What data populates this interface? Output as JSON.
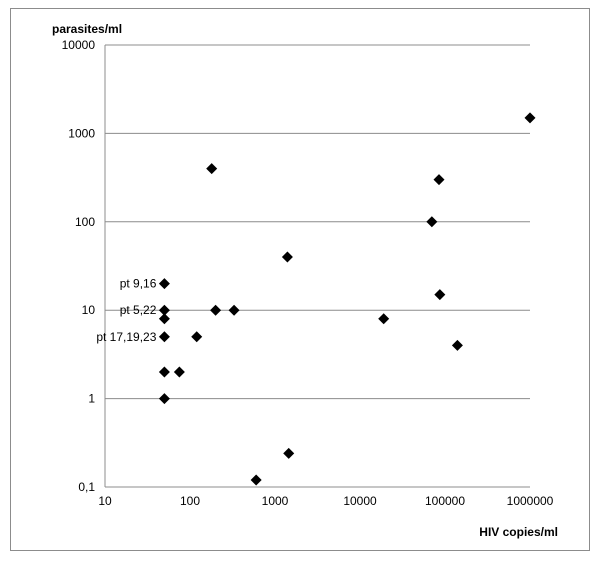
{
  "chart_data": {
    "type": "scatter",
    "title": "",
    "xlabel": "HIV copies/ml",
    "ylabel": "parasites/ml",
    "x_scale": "log",
    "y_scale": "log",
    "xlim": [
      10,
      1000000
    ],
    "ylim": [
      0.1,
      10000
    ],
    "x_ticks": [
      10,
      100,
      1000,
      10000,
      100000,
      1000000
    ],
    "x_tick_labels": [
      "10",
      "100",
      "1000",
      "10000",
      "100000",
      "1000000"
    ],
    "y_ticks": [
      0.1,
      1,
      10,
      100,
      1000,
      10000
    ],
    "y_tick_labels": [
      "0,1",
      "1",
      "10",
      "100",
      "1000",
      "10000"
    ],
    "grid": "horizontal",
    "marker": "diamond",
    "marker_color": "#000000",
    "points": [
      {
        "x": 50,
        "y": 20
      },
      {
        "x": 50,
        "y": 10
      },
      {
        "x": 50,
        "y": 8
      },
      {
        "x": 50,
        "y": 5
      },
      {
        "x": 50,
        "y": 2
      },
      {
        "x": 50,
        "y": 1
      },
      {
        "x": 75,
        "y": 2
      },
      {
        "x": 120,
        "y": 5
      },
      {
        "x": 180,
        "y": 400
      },
      {
        "x": 200,
        "y": 10
      },
      {
        "x": 330,
        "y": 10
      },
      {
        "x": 600,
        "y": 0.12
      },
      {
        "x": 1400,
        "y": 40
      },
      {
        "x": 1450,
        "y": 0.24
      },
      {
        "x": 19000,
        "y": 8
      },
      {
        "x": 70000,
        "y": 100
      },
      {
        "x": 85000,
        "y": 300
      },
      {
        "x": 87000,
        "y": 15
      },
      {
        "x": 140000,
        "y": 4
      },
      {
        "x": 1000000,
        "y": 1500
      }
    ],
    "annotations": [
      {
        "text": "pt 9,16",
        "x": 50,
        "y": 20
      },
      {
        "text": "pt 5,22",
        "x": 50,
        "y": 10
      },
      {
        "text": "pt  17,19,23",
        "x": 50,
        "y": 5
      }
    ]
  }
}
